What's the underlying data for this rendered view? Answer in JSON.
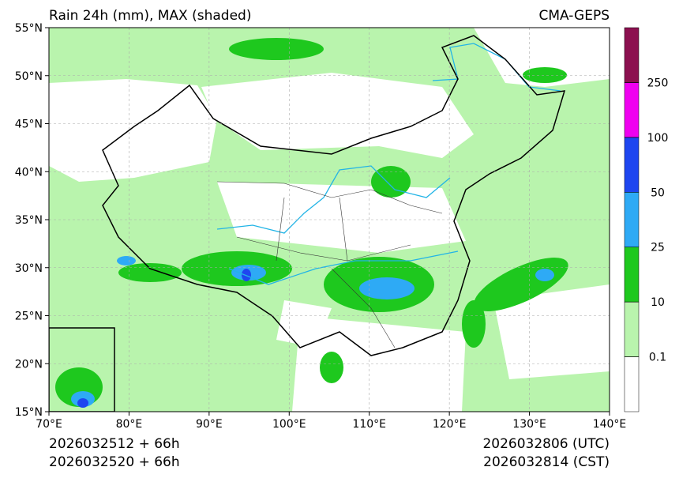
{
  "header": {
    "title": "Rain 24h (mm), MAX (shaded)",
    "source": "CMA-GEPS"
  },
  "map": {
    "xlim": [
      70,
      140
    ],
    "ylim": [
      15,
      55
    ],
    "xticks": [
      {
        "value": 70,
        "label": "70°E"
      },
      {
        "value": 80,
        "label": "80°E"
      },
      {
        "value": 90,
        "label": "90°E"
      },
      {
        "value": 100,
        "label": "100°E"
      },
      {
        "value": 110,
        "label": "110°E"
      },
      {
        "value": 120,
        "label": "120°E"
      },
      {
        "value": 130,
        "label": "130°E"
      },
      {
        "value": 140,
        "label": "140°E"
      }
    ],
    "yticks": [
      {
        "value": 15,
        "label": "15°N"
      },
      {
        "value": 20,
        "label": "20°N"
      },
      {
        "value": 25,
        "label": "25°N"
      },
      {
        "value": 30,
        "label": "30°N"
      },
      {
        "value": 35,
        "label": "35°N"
      },
      {
        "value": 40,
        "label": "40°N"
      },
      {
        "value": 45,
        "label": "45°N"
      },
      {
        "value": 50,
        "label": "50°N"
      },
      {
        "value": 55,
        "label": "55°N"
      }
    ],
    "grid": true
  },
  "colorbar": {
    "levels": [
      0.1,
      10,
      25,
      50,
      100,
      250
    ],
    "colors": [
      "#ffffff",
      "#b9f4ad",
      "#1ec81e",
      "#2eaaf5",
      "#1e46f0",
      "#f000f0",
      "#8c1050"
    ]
  },
  "footer": {
    "init_utc": "2026032512 + 66h",
    "init_cst": "2026032520 + 66h",
    "valid_utc": "2026032806 (UTC)",
    "valid_cst": "2026032814 (CST)"
  }
}
